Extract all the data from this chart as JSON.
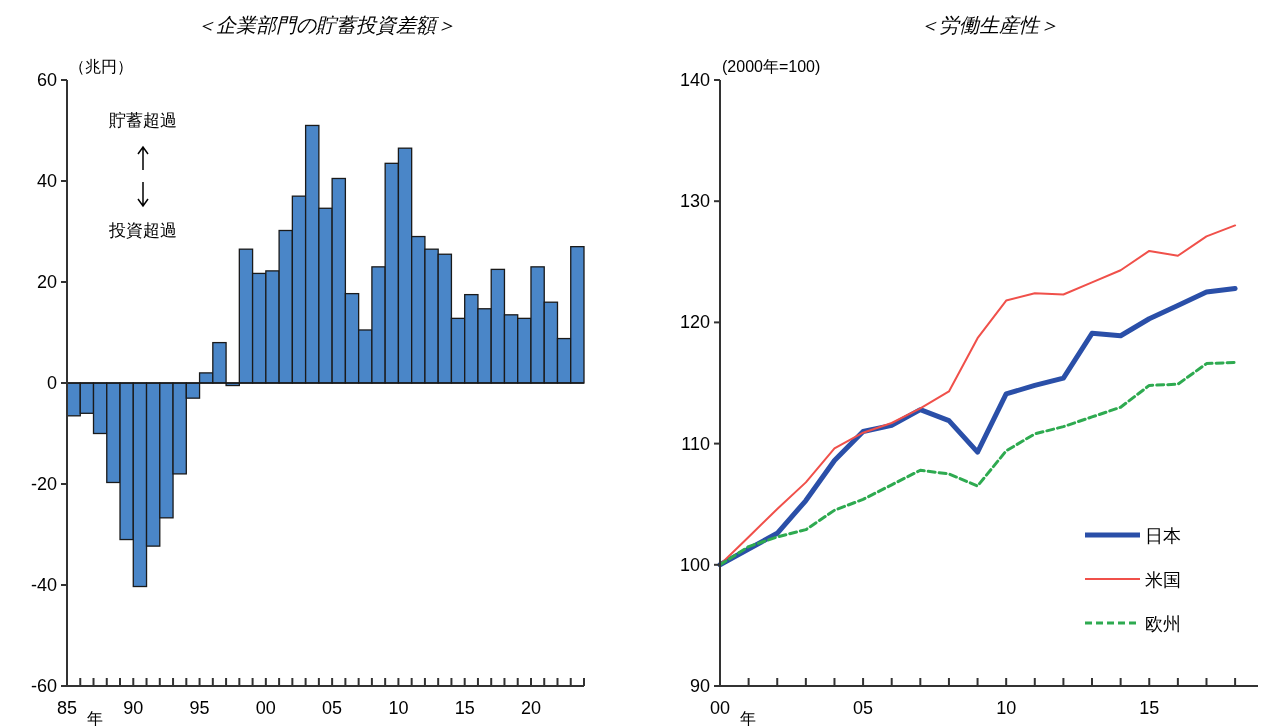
{
  "chart_data": [
    {
      "type": "bar",
      "title": "＜企業部門の貯蓄投資差額＞",
      "ylabel": "（兆円）",
      "xlabel": "年",
      "color": "#4a86c8",
      "categories": [
        "85",
        null,
        null,
        null,
        null,
        "90",
        null,
        null,
        null,
        null,
        "95",
        null,
        null,
        null,
        null,
        "00",
        null,
        null,
        null,
        null,
        "05",
        null,
        null,
        null,
        null,
        "10",
        null,
        null,
        null,
        null,
        "15",
        null,
        null,
        null,
        null,
        "20",
        null,
        null,
        null
      ],
      "values": [
        -6.5,
        -6,
        -10,
        -19.7,
        -31,
        -40.3,
        -32.3,
        -26.7,
        -18,
        -3,
        2,
        8,
        -0.5,
        26.5,
        21.7,
        22.2,
        30.2,
        37,
        51,
        34.6,
        40.5,
        17.7,
        10.5,
        23,
        43.5,
        46.5,
        29,
        26.5,
        25.5,
        12.8,
        17.5,
        14.7,
        22.5,
        13.5,
        12.8,
        23,
        16,
        8.8,
        27
      ],
      "ylim": [
        -60,
        60
      ],
      "yticks": [
        -60,
        -40,
        -20,
        0,
        20,
        40,
        60
      ],
      "annotations": [
        "貯蓄超過",
        "投資超過"
      ]
    },
    {
      "type": "line",
      "title": "＜労働生産性＞",
      "ylabel": "(2000年=100)",
      "xlabel": "年",
      "legend": "bottom right",
      "x": [
        2000,
        2001,
        2002,
        2003,
        2004,
        2005,
        2006,
        2007,
        2008,
        2009,
        2010,
        2011,
        2012,
        2013,
        2014,
        2015,
        2016,
        2017,
        2018
      ],
      "xlim": [
        2000,
        2018.8
      ],
      "xticks": [
        {
          "value": 2000,
          "label": "00"
        },
        {
          "value": 2001,
          "label": null
        },
        {
          "value": 2002,
          "label": null
        },
        {
          "value": 2003,
          "label": null
        },
        {
          "value": 2004,
          "label": null
        },
        {
          "value": 2005,
          "label": "05"
        },
        {
          "value": 2006,
          "label": null
        },
        {
          "value": 2007,
          "label": null
        },
        {
          "value": 2008,
          "label": null
        },
        {
          "value": 2009,
          "label": null
        },
        {
          "value": 2010,
          "label": "10"
        },
        {
          "value": 2011,
          "label": null
        },
        {
          "value": 2012,
          "label": null
        },
        {
          "value": 2013,
          "label": null
        },
        {
          "value": 2014,
          "label": null
        },
        {
          "value": 2015,
          "label": "15"
        },
        {
          "value": 2016,
          "label": null
        },
        {
          "value": 2017,
          "label": null
        },
        {
          "value": 2018,
          "label": null
        }
      ],
      "ylim": [
        90,
        140
      ],
      "yticks": [
        90,
        100,
        110,
        120,
        130,
        140
      ],
      "series": [
        {
          "name": "日本",
          "color": "#2a4fa8",
          "line_style": "solid",
          "values": [
            100,
            101.3,
            102.6,
            105.3,
            108.6,
            111.0,
            111.5,
            112.8,
            111.9,
            109.3,
            114.1,
            114.8,
            115.4,
            119.1,
            118.9,
            120.3,
            121.4,
            122.5,
            122.8
          ]
        },
        {
          "name": "米国",
          "color": "#f0504a",
          "line_style": "solid",
          "values": [
            100,
            102.3,
            104.6,
            106.8,
            109.6,
            110.9,
            111.7,
            112.9,
            114.3,
            118.7,
            121.8,
            122.4,
            122.3,
            123.3,
            124.3,
            125.9,
            125.5,
            127.1,
            128.0
          ]
        },
        {
          "name": "欧州",
          "color": "#2eaa50",
          "line_style": "dashed",
          "values": [
            100,
            101.5,
            102.3,
            102.9,
            104.5,
            105.4,
            106.6,
            107.8,
            107.5,
            106.5,
            109.4,
            110.8,
            111.4,
            112.2,
            113.0,
            114.8,
            114.9,
            116.6,
            116.7
          ]
        }
      ]
    }
  ]
}
